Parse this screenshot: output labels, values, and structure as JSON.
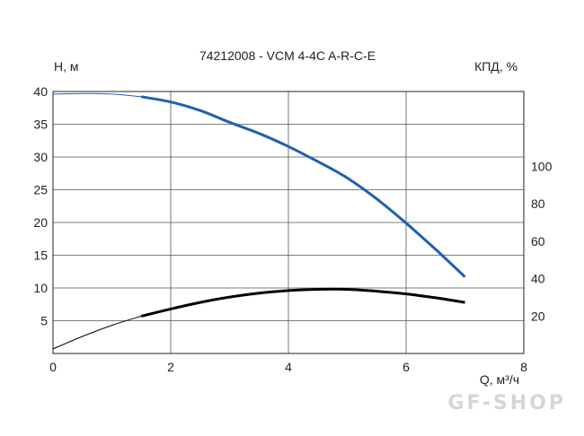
{
  "chart_data": {
    "type": "line",
    "title": "74212008 - VCM 4-4C A-R-C-E",
    "ylabel_left": "H, м",
    "ylabel_right": "КПД, %",
    "xlabel": "Q, м³/ч",
    "xlim": [
      0,
      8
    ],
    "ylim_left": [
      0,
      40
    ],
    "ylim_right": [
      0,
      140
    ],
    "x_ticks": [
      "0",
      "2",
      "4",
      "6",
      "8"
    ],
    "y_ticks_left": [
      "5",
      "10",
      "15",
      "20",
      "25",
      "30",
      "35",
      "40"
    ],
    "y_ticks_right": [
      "20",
      "40",
      "60",
      "80",
      "100"
    ],
    "grid": true,
    "series": [
      {
        "color": "#1f5fb0",
        "axis": "left",
        "x": [
          0,
          0.5,
          1.0,
          1.5,
          2.0,
          2.5,
          3.0,
          3.5,
          4.0,
          4.5,
          5.0,
          5.5,
          6.0,
          6.5,
          7.0
        ],
        "y": [
          39.6,
          39.7,
          39.6,
          39.2,
          38.4,
          37.1,
          35.3,
          33.6,
          31.6,
          29.3,
          26.8,
          23.6,
          19.9,
          15.9,
          11.7
        ],
        "bold_from_x": 1.5
      },
      {
        "color": "#000000",
        "axis": "left",
        "x": [
          0,
          0.5,
          1.0,
          1.5,
          2.0,
          2.5,
          3.0,
          3.5,
          4.0,
          4.5,
          5.0,
          5.5,
          6.0,
          6.5,
          7.0
        ],
        "y": [
          0.7,
          2.6,
          4.3,
          5.7,
          6.8,
          7.8,
          8.6,
          9.2,
          9.6,
          9.8,
          9.8,
          9.5,
          9.1,
          8.5,
          7.8
        ],
        "bold_from_x": 1.5
      }
    ]
  },
  "watermark": "GF-SHOP"
}
